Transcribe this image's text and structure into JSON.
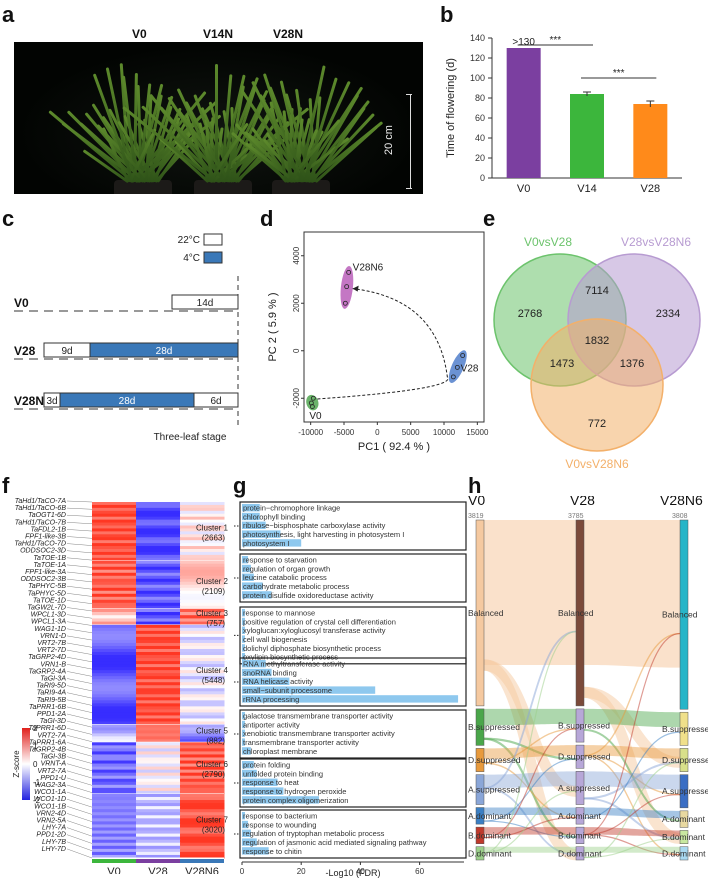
{
  "panels": {
    "a": "a",
    "b": "b",
    "c": "c",
    "d": "d",
    "e": "e",
    "f": "f",
    "g": "g",
    "h": "h"
  },
  "panel_a": {
    "labels": [
      "V0",
      "V14N",
      "V28N"
    ],
    "scale_bar": "20 cm"
  },
  "panel_c": {
    "legend": [
      "22°C",
      "4°C"
    ],
    "colors": {
      "warm": "#ffffff",
      "cold": "#3a78b8"
    },
    "rows": [
      {
        "label": "V0",
        "segments": [
          {
            "text": "14d",
            "type": "warm"
          }
        ]
      },
      {
        "label": "V28",
        "segments": [
          {
            "text": "9d",
            "type": "warm"
          },
          {
            "text": "28d",
            "type": "cold"
          }
        ]
      },
      {
        "label": "V28N6",
        "segments": [
          {
            "text": "3d",
            "type": "warm"
          },
          {
            "text": "28d",
            "type": "cold"
          },
          {
            "text": "6d",
            "type": "warm"
          }
        ]
      }
    ],
    "footer": "Three-leaf stage"
  },
  "panel_e": {
    "sets": [
      {
        "name": "V0vsV28",
        "color": "#6cc36c"
      },
      {
        "name": "V28vsV28N6",
        "color": "#b79bd1"
      },
      {
        "name": "V0vsV28N6",
        "color": "#f3b06a"
      }
    ],
    "counts": {
      "a_only": "2768",
      "b_only": "2334",
      "c_only": "772",
      "ab": "7114",
      "ac": "1473",
      "bc": "1376",
      "abc": "1832"
    }
  },
  "panel_f": {
    "genes": [
      "TaHd1/TaCO-7A",
      "TaHd1/TaCO-6B",
      "TaOGT1-6D",
      "TaHd1/TaCO-7B",
      "TaFDL2-1B",
      "FPF1-like-3B",
      "TaHd1/TaCO-7D",
      "ODDSOC2-3D",
      "TaTOE-1B",
      "TaTOE-1A",
      "FPF1-like-3A",
      "ODDSOC2-3B",
      "TaPHYC-5B",
      "TaPHYC-5D",
      "TaTOE-1D",
      "TaGW2L-7D",
      "WPCL1-3D",
      "WPCL1-3A",
      "WAG1-1D",
      "VRN1-D",
      "VRT2-7B",
      "VRT2-7D",
      "TaGRP2-4D",
      "VRN1-B",
      "TaGRP2-4A",
      "TaGI-3A",
      "TaRI9-5D",
      "TaRI9-4A",
      "TaRI9-5B",
      "TaPRR1-6B",
      "PPD1-2A",
      "TaGI-3D",
      "TaPRR1-6D",
      "VRT2-7A",
      "TaPRR1-6A",
      "TaGRP2-4B",
      "TaGI-3B",
      "VRNT-A",
      "VRT2-7A",
      "PPD1-U",
      "WAG2-3A",
      "WCO1-1A",
      "WCO1-1D",
      "WCO1-1B",
      "VRN2-4D",
      "VRN2-5A",
      "LHY-7A",
      "PPD1-2D",
      "LHY-7B",
      "LHY-7D"
    ],
    "columns": [
      "V0",
      "V28",
      "V28N6"
    ],
    "zscore_label": "Z-score",
    "zscore_ticks": [
      "2",
      "1",
      "0",
      "-1",
      "-2"
    ],
    "clusters": [
      {
        "name": "Cluster 1",
        "n": "(2663)"
      },
      {
        "name": "Cluster 2",
        "n": "(2109)"
      },
      {
        "name": "Cluster 3",
        "n": "(757)"
      },
      {
        "name": "Cluster 4",
        "n": "(5448)"
      },
      {
        "name": "Cluster 5",
        "n": "(882)"
      },
      {
        "name": "Cluster 6",
        "n": "(2790)"
      },
      {
        "name": "Cluster 7",
        "n": "(3020)"
      }
    ]
  },
  "panel_h": {
    "columns": [
      "V0",
      "V28",
      "V28N6"
    ],
    "totals": [
      "3819",
      "3785",
      "3808"
    ],
    "categories": [
      "Balanced",
      "B.suppressed",
      "D.suppressed",
      "A.suppressed",
      "A.dominant",
      "B.dominant",
      "D.dominant"
    ],
    "colors": [
      "#f5c9a0",
      "#4aa64a",
      "#e89a3c",
      "#8aa6d8",
      "#3a7fc4",
      "#c0392b",
      "#9bd08a"
    ]
  },
  "chart_data": [
    {
      "id": "b",
      "type": "bar",
      "categories": [
        "V0",
        "V14",
        "V28"
      ],
      "values": [
        130,
        84,
        74
      ],
      "errors": [
        0,
        2,
        3
      ],
      "colors": [
        "#7b3fa0",
        "#3cb63c",
        "#ff8a1a"
      ],
      "ylabel": "Time of flowering (d)",
      "ylim": [
        0,
        140
      ],
      "yticks": [
        0,
        20,
        40,
        60,
        80,
        100,
        120,
        140
      ],
      "bar_label": ">130",
      "significance": [
        "***",
        "***"
      ]
    },
    {
      "id": "d",
      "type": "scatter",
      "xlabel": "PC1 ( 92.4 % )",
      "ylabel": "PC 2 ( 5.9 % )",
      "xlim": [
        -11000,
        16000
      ],
      "ylim": [
        -3000,
        5000
      ],
      "xticks": [
        -10000,
        -5000,
        0,
        5000,
        10000,
        15000
      ],
      "yticks": [
        -2000,
        0,
        2000,
        4000
      ],
      "groups": [
        {
          "name": "V0",
          "color": "#3a9a3a",
          "points": [
            [
              -9900,
              -2200
            ],
            [
              -9600,
              -2000
            ],
            [
              -9750,
              -2350
            ]
          ]
        },
        {
          "name": "V28N6",
          "color": "#b04ab0",
          "points": [
            [
              -4300,
              3300
            ],
            [
              -4600,
              2700
            ],
            [
              -4800,
              2000
            ]
          ]
        },
        {
          "name": "V28",
          "color": "#3a6ec4",
          "points": [
            [
              12800,
              -200
            ],
            [
              12000,
              -700
            ],
            [
              11400,
              -1100
            ]
          ]
        }
      ]
    },
    {
      "id": "g",
      "type": "bar",
      "orientation": "horizontal",
      "xlabel": "-Log10 (FDR)",
      "xlim": [
        0,
        75
      ],
      "xticks": [
        0,
        20,
        40,
        60
      ],
      "color": "#8ec8ee",
      "clusters": [
        {
          "terms": [
            "protein−chromophore linkage",
            "chlorophyll binding",
            "ribulose−bisphosphate carboxylase activity",
            "photosynthesis, light harvesting in photosystem I",
            "photosystem I"
          ],
          "values": [
            6,
            6,
            8,
            13,
            20
          ]
        },
        {
          "terms": [
            "response to starvation",
            "regulation of organ growth",
            "leucine catabolic process",
            "carbohydrate metabolic process",
            "protein disulfide oxidoreductase activity"
          ],
          "values": [
            2,
            3,
            4,
            7,
            10
          ]
        },
        {
          "terms": [
            "response to mannose",
            "positive regulation of crystal cell differentiation",
            "xyloglucan:xyloglucosyl transferase activity",
            "cell wall biogenesis",
            "dolichyl diphosphate biosynthetic process",
            "oxylipin biosynthetic process"
          ],
          "values": [
            1,
            1,
            1,
            1,
            1,
            1
          ]
        },
        {
          "terms": [
            "RNA methyltransferase activity",
            "snoRNA binding",
            "RNA helicase activity",
            "small−subunit processome",
            "rRNA processing"
          ],
          "values": [
            8,
            10,
            16,
            45,
            73
          ]
        },
        {
          "terms": [
            "galactose transmembrane transporter activity",
            "antiporter activity",
            "xenobiotic transmembrane transporter activity",
            "transmembrane transporter activity",
            "chloroplast membrane"
          ],
          "values": [
            1,
            1,
            1,
            1,
            3
          ]
        },
        {
          "terms": [
            "protein folding",
            "unfolded protein binding",
            "response to heat",
            "response to hydrogen peroxide",
            "protein complex oligomerization"
          ],
          "values": [
            4,
            5,
            12,
            14,
            26
          ]
        },
        {
          "terms": [
            "response to bacterium",
            "response to wounding",
            "regulation of tryptophan metabolic process",
            "regulation of jasmonic acid mediated signaling pathway",
            "response to chitin"
          ],
          "values": [
            1,
            2,
            3,
            5,
            9
          ]
        }
      ]
    }
  ]
}
